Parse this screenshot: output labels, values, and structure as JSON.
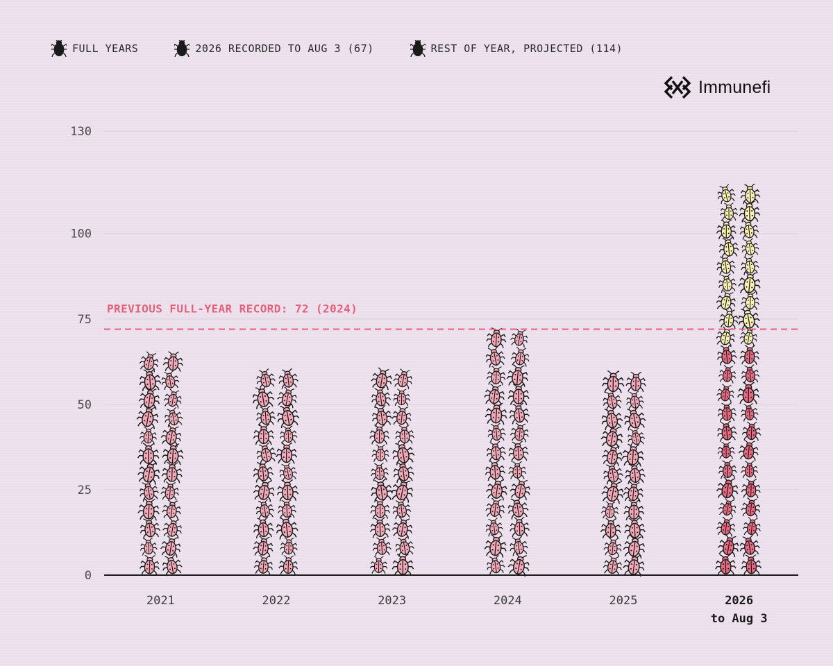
{
  "legend": {
    "full_years": "FULL YEARS",
    "recorded": "2026 RECORDED TO AUG 3 (67)",
    "projected": "REST OF YEAR, PROJECTED (114)"
  },
  "brand": {
    "name": "Immunefi"
  },
  "colors": {
    "full_years": "#f3a9b8",
    "recorded": "#e86a83",
    "projected": "#fbf2b4",
    "record_line": "#e2617c",
    "axis": "#1a1a1a"
  },
  "chart_data": {
    "type": "bar",
    "categories": [
      "2021",
      "2022",
      "2023",
      "2024",
      "2025",
      "2026"
    ],
    "category_sublabels": [
      "",
      "",
      "",
      "",
      "",
      "to Aug 3"
    ],
    "series": [
      {
        "name": "FULL YEARS",
        "values": [
          65,
          60,
          60,
          72,
          59,
          null
        ]
      },
      {
        "name": "2026 RECORDED TO AUG 3 (67)",
        "values": [
          null,
          null,
          null,
          null,
          null,
          67
        ]
      },
      {
        "name": "REST OF YEAR, PROJECTED (114)",
        "values": [
          null,
          null,
          null,
          null,
          null,
          114
        ]
      }
    ],
    "yticks": [
      0,
      25,
      50,
      75,
      100,
      130
    ],
    "ylim": [
      0,
      130
    ],
    "reference_line": {
      "value": 72,
      "label": "PREVIOUS FULL-YEAR RECORD: 72 (2024)"
    },
    "grid": true,
    "legend_position": "top-left"
  }
}
